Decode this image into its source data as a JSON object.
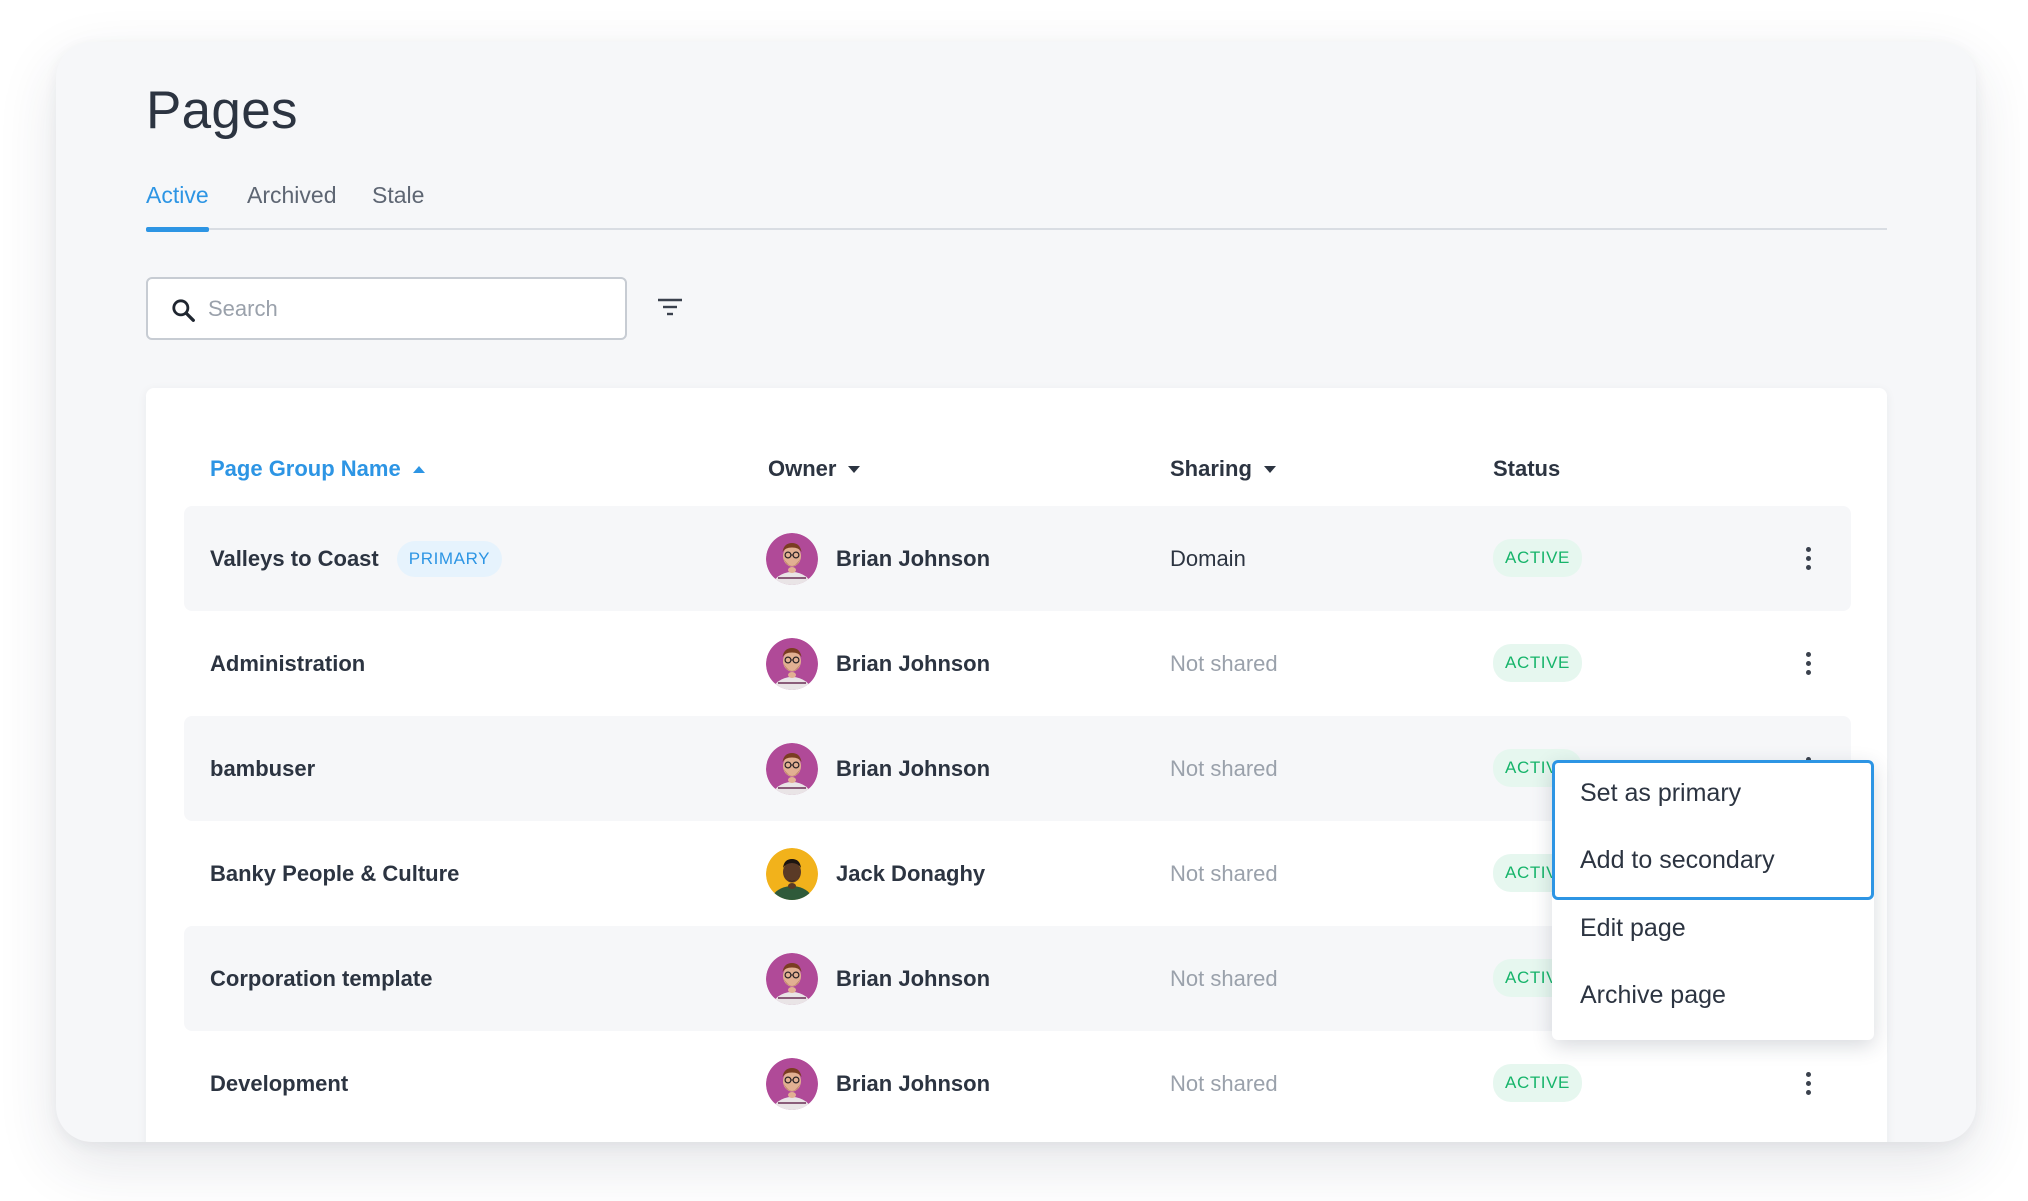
{
  "page": {
    "title": "Pages"
  },
  "tabs": [
    {
      "label": "Active",
      "active": true
    },
    {
      "label": "Archived"
    },
    {
      "label": "Stale"
    }
  ],
  "search": {
    "placeholder": "Search",
    "value": "",
    "icon": "search-icon"
  },
  "filter": {
    "icon": "filter-icon"
  },
  "table": {
    "columns": [
      {
        "label": "Page Group Name",
        "sort": "ascending",
        "active": true
      },
      {
        "label": "Owner",
        "sort": "dropdown"
      },
      {
        "label": "Sharing",
        "sort": "dropdown"
      },
      {
        "label": "Status"
      }
    ],
    "rows": [
      {
        "name": "Valleys to Coast",
        "badge": "PRIMARY",
        "owner": "Brian Johnson",
        "sharing": "Domain",
        "status": "ACTIVE"
      },
      {
        "name": "Administration",
        "owner": "Brian Johnson",
        "sharing": "Not shared",
        "status": "ACTIVE"
      },
      {
        "name": "bambuser",
        "owner": "Brian Johnson",
        "sharing": "Not shared",
        "status": "ACTIVE"
      },
      {
        "name": "Banky People & Culture",
        "owner": "Jack Donaghy",
        "sharing": "Not shared",
        "status": "ACTIVE"
      },
      {
        "name": "Corporation template",
        "owner": "Brian Johnson",
        "sharing": "Not shared",
        "status": "ACTIVE"
      },
      {
        "name": "Development",
        "owner": "Brian Johnson",
        "sharing": "Not shared",
        "status": "ACTIVE"
      }
    ]
  },
  "row_menu": {
    "items": [
      "Set as primary",
      "Add to secondary",
      "Edit page",
      "Archive page"
    ]
  },
  "colors": {
    "accent": "#2d95e4",
    "status_active": "#16b46a",
    "status_active_bg": "#e6f7ef",
    "avatar_brian_bg": "#b04a98",
    "avatar_jack_bg": "#f2b21b"
  }
}
